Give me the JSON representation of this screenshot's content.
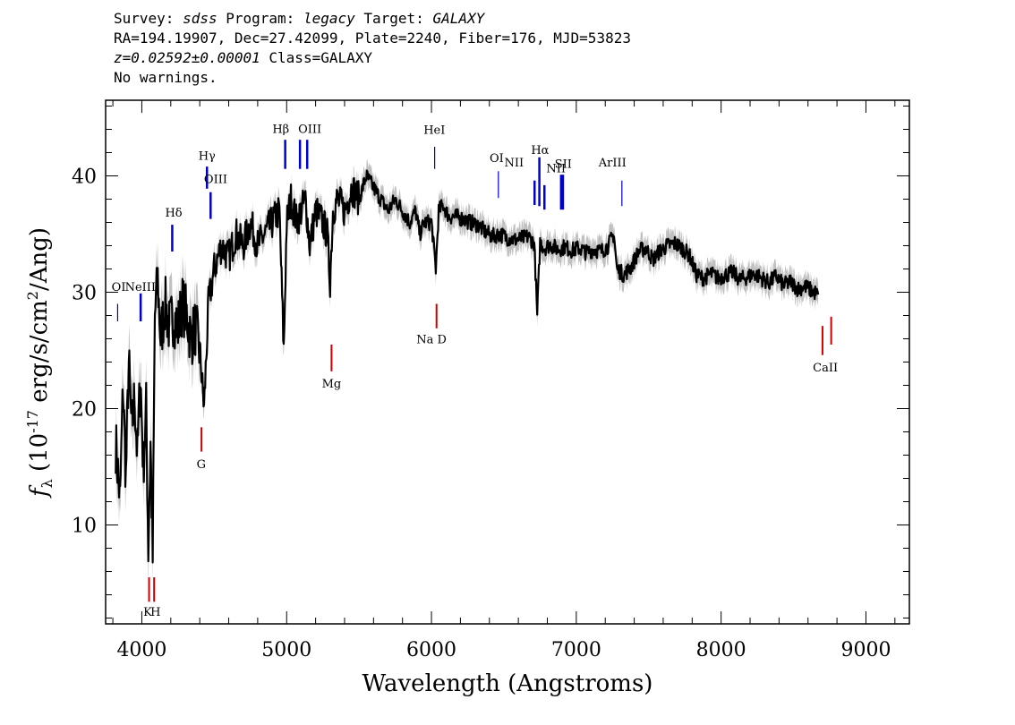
{
  "header": {
    "line1": {
      "survey_label": "Survey:",
      "survey": "sdss",
      "program_label": "Program:",
      "program": "legacy",
      "target_label": "Target:",
      "target": "GALAXY"
    },
    "line2": "RA=194.19907, Dec=27.42099, Plate=2240, Fiber=176, MJD=53823",
    "line3": {
      "redshift": "z=0.02592±0.00001",
      "class": "Class=GALAXY"
    },
    "line4": "No warnings."
  },
  "colors": {
    "flux": "#000000",
    "error": "#c0c0c0",
    "emission": "#0000cc",
    "absorption": "#cc0000"
  },
  "chart_data": {
    "type": "line",
    "xlabel": "Wavelength (Angstroms)",
    "ylabel": "f_λ (10^-17 erg/s/cm^2/Ang)",
    "xlim": [
      3750,
      9300
    ],
    "ylim": [
      1.5,
      46.5
    ],
    "x_ticks": [
      4000,
      5000,
      6000,
      7000,
      8000,
      9000
    ],
    "y_ticks": [
      10,
      20,
      30,
      40
    ],
    "x_tick_labels": [
      "4000",
      "5000",
      "6000",
      "7000",
      "8000",
      "9000"
    ],
    "y_tick_labels": [
      "10",
      "20",
      "30",
      "40"
    ],
    "series": [
      {
        "x": [
          3820,
          3850,
          3870,
          3890,
          3910,
          3930,
          3950,
          3970,
          3990,
          4010,
          4030,
          4045,
          4060,
          4075,
          4090,
          4110,
          4130,
          4160,
          4190,
          4220,
          4250,
          4280,
          4310,
          4340,
          4370,
          4400,
          4430,
          4460,
          4500,
          4550,
          4600,
          4650,
          4700,
          4750,
          4800,
          4850,
          4900,
          4950,
          4980,
          5000,
          5030,
          5070,
          5100,
          5130,
          5160,
          5200,
          5250,
          5280,
          5300,
          5320,
          5350,
          5400,
          5450,
          5500,
          5550,
          5600,
          5650,
          5700,
          5750,
          5800,
          5850,
          5890,
          5920,
          5950,
          6000,
          6030,
          6050,
          6080,
          6120,
          6170,
          6220,
          6270,
          6320,
          6370,
          6420,
          6470,
          6520,
          6570,
          6620,
          6670,
          6710,
          6730,
          6750,
          6780,
          6820,
          6870,
          6920,
          6970,
          7020,
          7070,
          7120,
          7170,
          7220,
          7260,
          7280,
          7300,
          7330,
          7380,
          7430,
          7480,
          7530,
          7580,
          7630,
          7680,
          7730,
          7780,
          7830,
          7880,
          7930,
          7980,
          8030,
          8080,
          8130,
          8180,
          8230,
          8280,
          8330,
          8380,
          8430,
          8480,
          8530,
          8580,
          8630,
          8670
        ],
        "y": [
          17,
          12,
          22,
          14,
          24,
          18,
          21,
          16,
          23,
          15,
          20,
          8,
          17,
          7,
          28,
          31,
          26,
          29,
          27,
          28,
          27,
          29,
          28,
          26,
          27,
          25,
          20,
          29,
          32,
          34,
          33,
          35,
          34,
          36,
          34,
          35,
          36,
          37,
          25,
          36,
          38,
          36,
          37,
          38,
          34,
          37,
          36,
          35,
          31,
          37,
          38,
          37,
          39,
          38,
          40,
          39,
          38,
          37,
          38,
          37,
          36,
          37,
          35,
          36,
          36,
          32,
          37,
          37.5,
          36.5,
          36.5,
          36.3,
          36,
          35.8,
          35.2,
          34.8,
          35,
          34.7,
          34.5,
          34.6,
          34.8,
          34.2,
          28,
          34.3,
          33.8,
          34.1,
          33.7,
          33.9,
          33.6,
          33.8,
          33.4,
          33.7,
          33.5,
          34,
          35,
          32,
          31.8,
          31.5,
          32.2,
          33.5,
          33.8,
          32.8,
          33.6,
          34,
          34.2,
          33.8,
          33.2,
          31.5,
          31.2,
          31.6,
          31.2,
          31.5,
          31.7,
          31.1,
          31.3,
          31.6,
          31.2,
          30.8,
          31.4,
          30.6,
          30.9,
          30.3,
          30.5,
          30.1,
          29.8
        ]
      }
    ],
    "emission_lines": [
      {
        "name": "OI",
        "wl": 3833,
        "y_top": 29,
        "y_bot": 27.5
      },
      {
        "name": "NeIII",
        "wl": 3992,
        "y_top": 29.9,
        "y_bot": 27.5
      },
      {
        "name": "Hδ",
        "wl": 4210,
        "y_top": 35.8,
        "y_bot": 33.5
      },
      {
        "name": "Hγ",
        "wl": 4450,
        "y_top": 40.8,
        "y_bot": 38.9
      },
      {
        "name": "OIII",
        "wl": 4475,
        "y_top": 38.6,
        "y_bot": 36.3
      },
      {
        "name": "Hβ",
        "wl": 4990,
        "y_top": 43.1,
        "y_bot": 40.6
      },
      {
        "name": "OIII",
        "wl": 5092,
        "y_top": 43.1,
        "y_bot": 40.6
      },
      {
        "name": "OIII",
        "wl": 5142,
        "y_top": 43.1,
        "y_bot": 40.6
      },
      {
        "name": "HeI",
        "wl": 6022,
        "y_top": 42.5,
        "y_bot": 40.6
      },
      {
        "name": "OI",
        "wl": 6462,
        "y_top": 40.4,
        "y_bot": 38.1
      },
      {
        "name": "NII",
        "wl": 6712,
        "y_top": 39.6,
        "y_bot": 37.5
      },
      {
        "name": "Hα",
        "wl": 6745,
        "y_top": 41.6,
        "y_bot": 37.4
      },
      {
        "name": "NII",
        "wl": 6780,
        "y_top": 39.2,
        "y_bot": 37.1
      },
      {
        "name": "SII",
        "wl": 6895,
        "y_top": 40.1,
        "y_bot": 37.1
      },
      {
        "name": "SII",
        "wl": 6908,
        "y_top": 40.1,
        "y_bot": 37.1
      },
      {
        "name": "ArIII",
        "wl": 7315,
        "y_top": 39.6,
        "y_bot": 37.4
      }
    ],
    "absorption_lines": [
      {
        "name": "K",
        "wl": 4050,
        "y_top": 5.5,
        "y_bot": 3.4
      },
      {
        "name": "H",
        "wl": 4085,
        "y_top": 5.5,
        "y_bot": 3.4
      },
      {
        "name": "G",
        "wl": 4412,
        "y_top": 18.4,
        "y_bot": 16.3
      },
      {
        "name": "Mg",
        "wl": 5310,
        "y_top": 25.5,
        "y_bot": 23.2
      },
      {
        "name": "Na D",
        "wl": 6035,
        "y_top": 29,
        "y_bot": 26.9
      },
      {
        "name": "CaII",
        "wl": 8700,
        "y_top": 27.1,
        "y_bot": 24.6
      },
      {
        "name": "CaII",
        "wl": 8760,
        "y_top": 27.9,
        "y_bot": 25.5
      }
    ],
    "line_labels": [
      {
        "text": "OI",
        "wl": 3840,
        "y": 30.1
      },
      {
        "text": "NeIII",
        "wl": 3990,
        "y": 30.1
      },
      {
        "text": "Hδ",
        "wl": 4220,
        "y": 36.5
      },
      {
        "text": "Hγ",
        "wl": 4450,
        "y": 41.4
      },
      {
        "text": "OIII",
        "wl": 4510,
        "y": 39.4
      },
      {
        "text": "Hβ",
        "wl": 4960,
        "y": 43.7
      },
      {
        "text": "OIII",
        "wl": 5160,
        "y": 43.7
      },
      {
        "text": "HeI",
        "wl": 6020,
        "y": 43.6
      },
      {
        "text": "OI",
        "wl": 6450,
        "y": 41.2
      },
      {
        "text": "NII",
        "wl": 6570,
        "y": 40.8
      },
      {
        "text": "Hα",
        "wl": 6750,
        "y": 41.9
      },
      {
        "text": "NII",
        "wl": 6860,
        "y": 40.3
      },
      {
        "text": "SII",
        "wl": 6910,
        "y": 40.7
      },
      {
        "text": "ArIII",
        "wl": 7250,
        "y": 40.8
      },
      {
        "text": "K",
        "wl": 4040,
        "y": 2.2
      },
      {
        "text": "H",
        "wl": 4095,
        "y": 2.2
      },
      {
        "text": "G",
        "wl": 4410,
        "y": 14.9
      },
      {
        "text": "Mg",
        "wl": 5310,
        "y": 21.8
      },
      {
        "text": "Na D",
        "wl": 6000,
        "y": 25.6
      },
      {
        "text": "CaII",
        "wl": 8720,
        "y": 23.2
      }
    ]
  }
}
